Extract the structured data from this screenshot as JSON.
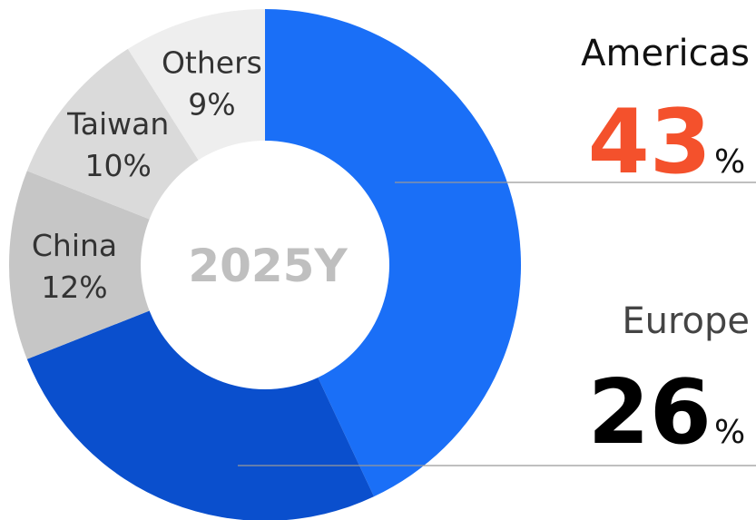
{
  "chart_data": {
    "type": "donut",
    "center_label": "2025Y",
    "categories": [
      "Americas",
      "Europe",
      "China",
      "Taiwan",
      "Others"
    ],
    "values": [
      43,
      26,
      12,
      10,
      9
    ],
    "value_labels": [
      null,
      null,
      "12%",
      "10%",
      "9%"
    ],
    "unit": "%",
    "colors": [
      "#1a6ff7",
      "#0a4fcd",
      "#c6c6c6",
      "#dadada",
      "#eeeeee"
    ]
  }
}
